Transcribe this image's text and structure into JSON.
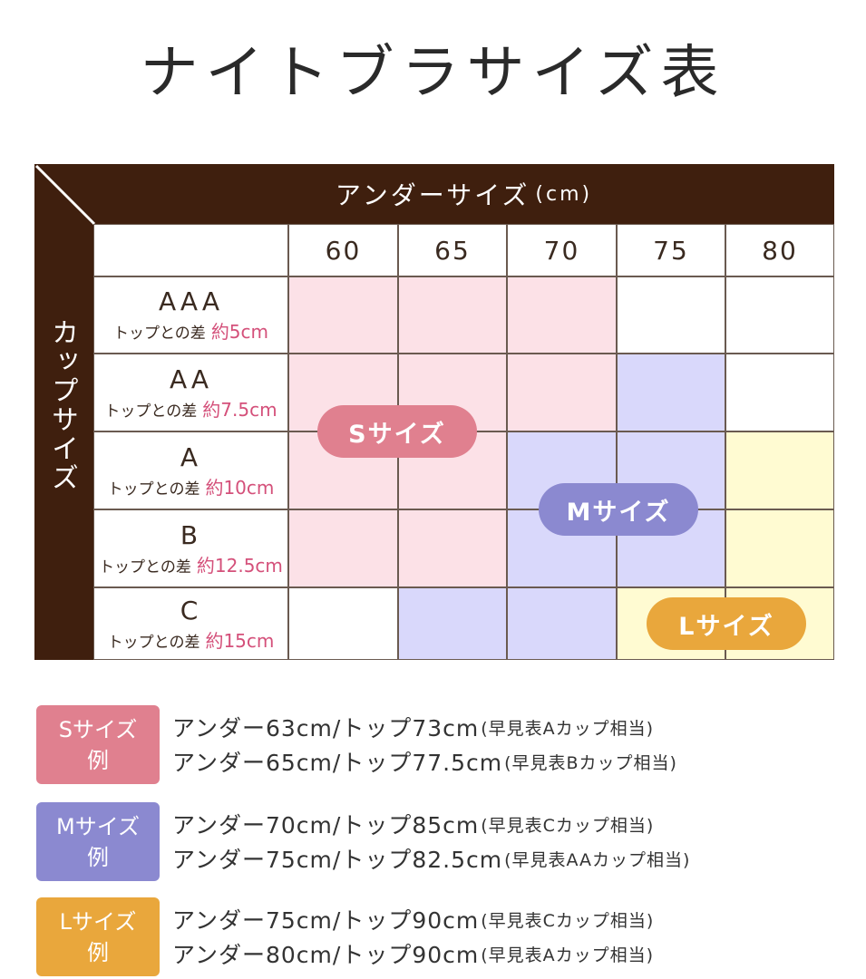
{
  "title": "ナイトブラサイズ表",
  "table": {
    "header_title": "アンダーサイズ",
    "header_unit": "(cm)",
    "side_title": "カップサイズ",
    "columns": [
      60,
      65,
      70,
      75,
      80
    ],
    "rows": [
      {
        "cup": "AAA",
        "diff_label": "トップとの差",
        "diff": "約5cm",
        "cells": [
          "#fce1e7",
          "#fce1e7",
          "#fce1e7",
          "#ffffff",
          "#ffffff"
        ]
      },
      {
        "cup": "AA",
        "diff_label": "トップとの差",
        "diff": "約7.5cm",
        "cells": [
          "#fce1e7",
          "#fce1e7",
          "#fce1e7",
          "#d9d8fb",
          "#ffffff"
        ]
      },
      {
        "cup": "A",
        "diff_label": "トップとの差",
        "diff": "約10cm",
        "cells": [
          "#fce1e7",
          "#fce1e7",
          "#d9d8fb",
          "#d9d8fb",
          "#fffbd2"
        ]
      },
      {
        "cup": "B",
        "diff_label": "トップとの差",
        "diff": "約12.5cm",
        "cells": [
          "#fce1e7",
          "#fce1e7",
          "#d9d8fb",
          "#d9d8fb",
          "#fffbd2"
        ]
      },
      {
        "cup": "C",
        "diff_label": "トップとの差",
        "diff": "約15cm",
        "cells": [
          "#ffffff",
          "#d9d8fb",
          "#d9d8fb",
          "#fffbd2",
          "#fffbd2"
        ]
      }
    ],
    "badges": [
      {
        "label": "Sサイズ",
        "color": "#e0808f"
      },
      {
        "label": "Mサイズ",
        "color": "#8b89d0"
      },
      {
        "label": "Lサイズ",
        "color": "#e9a73c"
      }
    ]
  },
  "examples": [
    {
      "label": "Sサイズ",
      "sub": "例",
      "color": "#e0808f",
      "lines": [
        {
          "text": "アンダー63cm/トップ73cm",
          "note": "(早見表Aカップ相当)"
        },
        {
          "text": "アンダー65cm/トップ77.5cm",
          "note": "(早見表Bカップ相当)"
        }
      ]
    },
    {
      "label": "Mサイズ",
      "sub": "例",
      "color": "#8b89d0",
      "lines": [
        {
          "text": "アンダー70cm/トップ85cm",
          "note": "(早見表Cカップ相当)"
        },
        {
          "text": "アンダー75cm/トップ82.5cm",
          "note": "(早見表AAカップ相当)"
        }
      ]
    },
    {
      "label": "Lサイズ",
      "sub": "例",
      "color": "#e9a73c",
      "lines": [
        {
          "text": "アンダー75cm/トップ90cm",
          "note": "(早見表Cカップ相当)"
        },
        {
          "text": "アンダー80cm/トップ90cm",
          "note": "(早見表Aカップ相当)"
        }
      ]
    }
  ]
}
